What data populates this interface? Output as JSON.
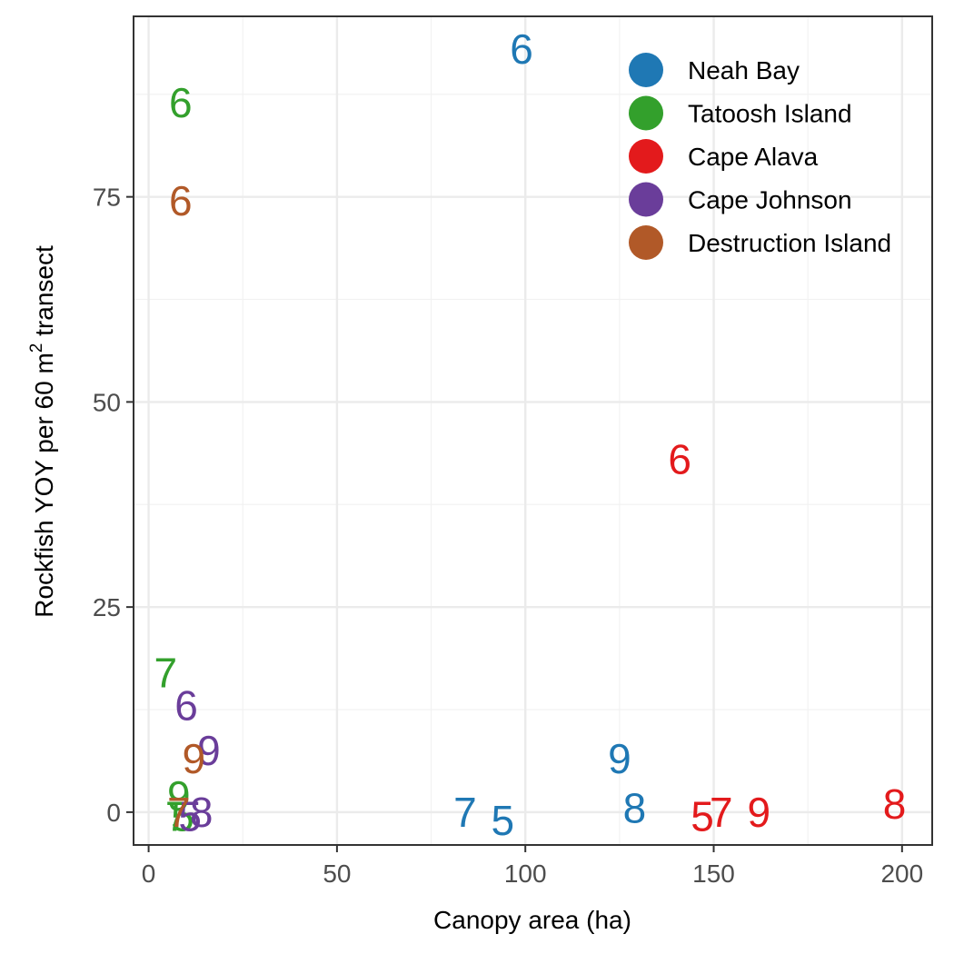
{
  "chart_data": {
    "type": "scatter",
    "title": "",
    "xlabel": "Canopy area (ha)",
    "ylabel": {
      "main": "Rockfish YOY per 60 m",
      "superscript": "2",
      "suffix": " transect"
    },
    "xlim": [
      -4,
      208
    ],
    "ylim": [
      -4,
      97
    ],
    "x_ticks": [
      0,
      50,
      100,
      150,
      200
    ],
    "x_tick_labels": [
      "0",
      "50",
      "100",
      "150",
      "200"
    ],
    "y_ticks": [
      0,
      25,
      50,
      75
    ],
    "y_tick_labels": [
      "0",
      "25",
      "50",
      "75"
    ],
    "x_minor_ticks": [
      25,
      75,
      125,
      175
    ],
    "y_minor_ticks": [
      12.5,
      37.5,
      62.5,
      87.5
    ],
    "grid": true,
    "legend_position": "top-right",
    "series": [
      {
        "name": "Neah Bay",
        "color": "#1f78b4",
        "points": [
          {
            "x": 99,
            "y": 93,
            "label": "6"
          },
          {
            "x": 84,
            "y": 0,
            "label": "7"
          },
          {
            "x": 94,
            "y": -1,
            "label": "5"
          },
          {
            "x": 129,
            "y": 0.5,
            "label": "8"
          },
          {
            "x": 125,
            "y": 6.5,
            "label": "9"
          }
        ]
      },
      {
        "name": "Tatoosh Island",
        "color": "#33a02c",
        "points": [
          {
            "x": 8.5,
            "y": 86.5,
            "label": "6"
          },
          {
            "x": 4.5,
            "y": 17,
            "label": "7"
          },
          {
            "x": 8,
            "y": 2,
            "label": "9"
          },
          {
            "x": 7.5,
            "y": -0.5,
            "label": "7"
          },
          {
            "x": 9,
            "y": -0.5,
            "label": "5"
          }
        ]
      },
      {
        "name": "Cape Alava",
        "color": "#e31a1c",
        "points": [
          {
            "x": 141,
            "y": 43,
            "label": "6"
          },
          {
            "x": 147,
            "y": -0.5,
            "label": "5"
          },
          {
            "x": 152,
            "y": 0,
            "label": "7"
          },
          {
            "x": 162,
            "y": 0,
            "label": "9"
          },
          {
            "x": 198,
            "y": 1,
            "label": "8"
          }
        ]
      },
      {
        "name": "Cape Johnson",
        "color": "#6a3d9a",
        "points": [
          {
            "x": 10,
            "y": 13,
            "label": "6"
          },
          {
            "x": 16,
            "y": 7.5,
            "label": "9"
          },
          {
            "x": 14,
            "y": 0,
            "label": "8"
          },
          {
            "x": 11,
            "y": -0.5,
            "label": "5"
          }
        ]
      },
      {
        "name": "Destruction Island",
        "color": "#b15928",
        "points": [
          {
            "x": 8.5,
            "y": 74.5,
            "label": "6"
          },
          {
            "x": 12,
            "y": 6.5,
            "label": "9"
          },
          {
            "x": 8,
            "y": 0,
            "label": "7"
          }
        ]
      }
    ]
  }
}
